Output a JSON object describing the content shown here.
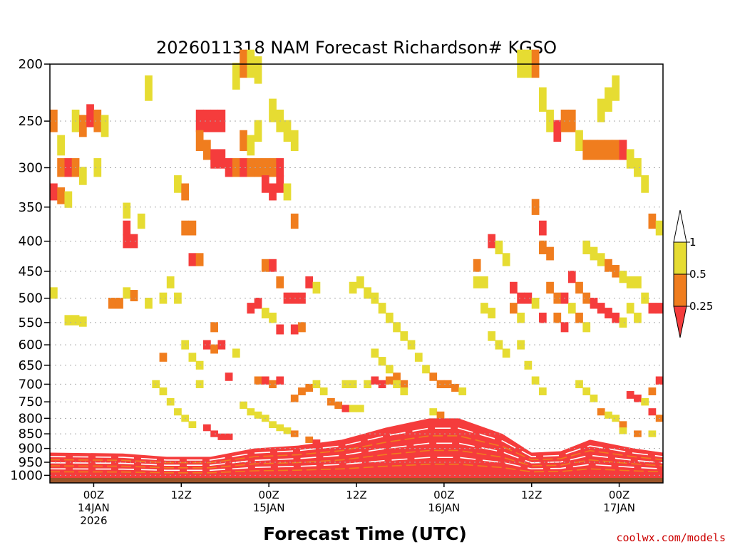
{
  "chart_data": {
    "type": "heatmap",
    "title": "2026011318 NAM Forecast Richardson# KGSO",
    "xlabel": "Forecast Time (UTC)",
    "ylabel": "",
    "credit": "coolwx.com/models",
    "colors": {
      "band_0_0.25": "#f53c3c",
      "band_0.25_0.5": "#f07d1e",
      "band_0.5_1": "#e6dc32",
      "ground": "#9b5428",
      "grid": "#aaaaaa",
      "frame": "#000000"
    },
    "y_axis": {
      "unit": "mb",
      "range": [
        1030,
        200
      ],
      "scale": "log",
      "ticks": [
        200,
        250,
        300,
        350,
        400,
        450,
        500,
        550,
        600,
        650,
        700,
        750,
        800,
        850,
        900,
        950,
        1000
      ],
      "tick_labels": [
        "200",
        "250",
        "300",
        "350",
        "400",
        "450",
        "500",
        "550",
        "600",
        "650",
        "700",
        "750",
        "800",
        "850",
        "900",
        "950",
        "1000"
      ]
    },
    "x_axis": {
      "unit": "hours after 2026011318",
      "range": [
        0,
        84
      ],
      "ticks": [
        {
          "hour": 6,
          "line1": "00Z",
          "line2": "14JAN",
          "line3": "2026"
        },
        {
          "hour": 18,
          "line1": "12Z",
          "line2": "",
          "line3": ""
        },
        {
          "hour": 30,
          "line1": "00Z",
          "line2": "15JAN",
          "line3": ""
        },
        {
          "hour": 42,
          "line1": "12Z",
          "line2": "",
          "line3": ""
        },
        {
          "hour": 54,
          "line1": "00Z",
          "line2": "16JAN",
          "line3": ""
        },
        {
          "hour": 66,
          "line1": "12Z",
          "line2": "",
          "line3": ""
        },
        {
          "hour": 78,
          "line1": "00Z",
          "line2": "17JAN",
          "line3": ""
        }
      ]
    },
    "legend": {
      "placement": "right",
      "levels": [
        "1",
        "0.5",
        "0.25"
      ],
      "bands": [
        {
          "range": "0.5 - 1",
          "color": "#e6dc32"
        },
        {
          "range": "0.25 - 0.5",
          "color": "#f07d1e"
        },
        {
          "range": "0 - 0.25",
          "color": "#f53c3c"
        }
      ]
    },
    "ground_level_mb": 1010,
    "surface_layer": {
      "top_mb_by_hour": [
        [
          0,
          915
        ],
        [
          10,
          918
        ],
        [
          16,
          930
        ],
        [
          22,
          930
        ],
        [
          28,
          900
        ],
        [
          34,
          890
        ],
        [
          40,
          870
        ],
        [
          46,
          830
        ],
        [
          52,
          800
        ],
        [
          56,
          800
        ],
        [
          62,
          850
        ],
        [
          66,
          915
        ],
        [
          70,
          910
        ],
        [
          74,
          870
        ],
        [
          80,
          900
        ],
        [
          84,
          915
        ]
      ]
    },
    "cells": [
      [
        0,
        250,
        1
      ],
      [
        1,
        275,
        2
      ],
      [
        1,
        300,
        1
      ],
      [
        2,
        300,
        0
      ],
      [
        3,
        300,
        1
      ],
      [
        4,
        310,
        2
      ],
      [
        0,
        330,
        0
      ],
      [
        1,
        335,
        1
      ],
      [
        2,
        340,
        2
      ],
      [
        3,
        250,
        2
      ],
      [
        4,
        255,
        1
      ],
      [
        5,
        245,
        0
      ],
      [
        6,
        250,
        1
      ],
      [
        7,
        255,
        2
      ],
      [
        6,
        300,
        2
      ],
      [
        10,
        380,
        0
      ],
      [
        10,
        400,
        0
      ],
      [
        11,
        400,
        0
      ],
      [
        10,
        355,
        2
      ],
      [
        12,
        370,
        2
      ],
      [
        13,
        220,
        2
      ],
      [
        8,
        510,
        1
      ],
      [
        9,
        510,
        1
      ],
      [
        10,
        490,
        2
      ],
      [
        11,
        495,
        1
      ],
      [
        13,
        510,
        2
      ],
      [
        2,
        545,
        2
      ],
      [
        3,
        545,
        2
      ],
      [
        4,
        548,
        2
      ],
      [
        0,
        490,
        2
      ],
      [
        17,
        320,
        2
      ],
      [
        18,
        330,
        1
      ],
      [
        18,
        380,
        1
      ],
      [
        19,
        380,
        1
      ],
      [
        19,
        430,
        0
      ],
      [
        20,
        430,
        1
      ],
      [
        20,
        250,
        0
      ],
      [
        21,
        250,
        0
      ],
      [
        22,
        250,
        0
      ],
      [
        23,
        250,
        0
      ],
      [
        20,
        270,
        1
      ],
      [
        21,
        280,
        1
      ],
      [
        22,
        290,
        0
      ],
      [
        23,
        290,
        0
      ],
      [
        24,
        300,
        0
      ],
      [
        25,
        300,
        1
      ],
      [
        26,
        300,
        0
      ],
      [
        27,
        300,
        1
      ],
      [
        28,
        300,
        1
      ],
      [
        29,
        300,
        1
      ],
      [
        30,
        300,
        1
      ],
      [
        31,
        300,
        0
      ],
      [
        26,
        270,
        1
      ],
      [
        27,
        275,
        2
      ],
      [
        28,
        260,
        2
      ],
      [
        29,
        320,
        0
      ],
      [
        30,
        330,
        0
      ],
      [
        31,
        320,
        0
      ],
      [
        32,
        330,
        2
      ],
      [
        33,
        370,
        1
      ],
      [
        32,
        260,
        2
      ],
      [
        33,
        270,
        2
      ],
      [
        30,
        240,
        2
      ],
      [
        31,
        250,
        2
      ],
      [
        25,
        210,
        2
      ],
      [
        26,
        200,
        1
      ],
      [
        27,
        200,
        2
      ],
      [
        28,
        205,
        2
      ],
      [
        29,
        440,
        1
      ],
      [
        30,
        440,
        0
      ],
      [
        31,
        470,
        1
      ],
      [
        32,
        500,
        0
      ],
      [
        33,
        500,
        0
      ],
      [
        34,
        500,
        0
      ],
      [
        35,
        470,
        0
      ],
      [
        36,
        480,
        2
      ],
      [
        27,
        520,
        0
      ],
      [
        28,
        510,
        0
      ],
      [
        29,
        530,
        2
      ],
      [
        30,
        540,
        2
      ],
      [
        31,
        565,
        0
      ],
      [
        33,
        565,
        0
      ],
      [
        34,
        560,
        1
      ],
      [
        28,
        690,
        1
      ],
      [
        29,
        690,
        0
      ],
      [
        30,
        700,
        1
      ],
      [
        31,
        690,
        0
      ],
      [
        33,
        740,
        1
      ],
      [
        34,
        720,
        1
      ],
      [
        35,
        710,
        1
      ],
      [
        36,
        700,
        2
      ],
      [
        21,
        600,
        0
      ],
      [
        22,
        560,
        1
      ],
      [
        22,
        610,
        1
      ],
      [
        23,
        600,
        0
      ],
      [
        24,
        680,
        0
      ],
      [
        25,
        620,
        2
      ],
      [
        18,
        600,
        2
      ],
      [
        19,
        630,
        2
      ],
      [
        20,
        650,
        2
      ],
      [
        20,
        700,
        2
      ],
      [
        21,
        830,
        0
      ],
      [
        22,
        850,
        0
      ],
      [
        23,
        860,
        0
      ],
      [
        24,
        860,
        0
      ],
      [
        37,
        720,
        2
      ],
      [
        38,
        750,
        1
      ],
      [
        39,
        760,
        1
      ],
      [
        40,
        770,
        0
      ],
      [
        41,
        770,
        2
      ],
      [
        42,
        770,
        2
      ],
      [
        40,
        700,
        2
      ],
      [
        41,
        700,
        2
      ],
      [
        43,
        700,
        2
      ],
      [
        44,
        690,
        0
      ],
      [
        45,
        700,
        0
      ],
      [
        46,
        690,
        1
      ],
      [
        47,
        680,
        1
      ],
      [
        48,
        700,
        1
      ],
      [
        41,
        480,
        2
      ],
      [
        42,
        470,
        2
      ],
      [
        43,
        490,
        2
      ],
      [
        44,
        500,
        2
      ],
      [
        45,
        520,
        2
      ],
      [
        46,
        540,
        2
      ],
      [
        47,
        560,
        2
      ],
      [
        48,
        580,
        2
      ],
      [
        49,
        600,
        2
      ],
      [
        50,
        630,
        2
      ],
      [
        51,
        660,
        2
      ],
      [
        52,
        680,
        1
      ],
      [
        53,
        700,
        1
      ],
      [
        54,
        700,
        1
      ],
      [
        55,
        710,
        1
      ],
      [
        56,
        720,
        2
      ],
      [
        58,
        440,
        1
      ],
      [
        58,
        470,
        2
      ],
      [
        59,
        470,
        2
      ],
      [
        59,
        520,
        2
      ],
      [
        60,
        530,
        2
      ],
      [
        60,
        580,
        2
      ],
      [
        61,
        600,
        2
      ],
      [
        62,
        620,
        2
      ],
      [
        63,
        480,
        0
      ],
      [
        63,
        520,
        1
      ],
      [
        64,
        540,
        2
      ],
      [
        64,
        600,
        2
      ],
      [
        65,
        650,
        2
      ],
      [
        66,
        690,
        2
      ],
      [
        67,
        720,
        2
      ],
      [
        60,
        400,
        0
      ],
      [
        61,
        410,
        2
      ],
      [
        62,
        430,
        2
      ],
      [
        64,
        500,
        0
      ],
      [
        65,
        500,
        0
      ],
      [
        66,
        510,
        2
      ],
      [
        67,
        540,
        0
      ],
      [
        66,
        350,
        1
      ],
      [
        67,
        380,
        0
      ],
      [
        67,
        410,
        1
      ],
      [
        68,
        420,
        1
      ],
      [
        68,
        480,
        1
      ],
      [
        69,
        500,
        1
      ],
      [
        69,
        540,
        1
      ],
      [
        70,
        560,
        0
      ],
      [
        64,
        200,
        2
      ],
      [
        65,
        200,
        2
      ],
      [
        66,
        200,
        1
      ],
      [
        67,
        230,
        2
      ],
      [
        68,
        250,
        2
      ],
      [
        69,
        260,
        0
      ],
      [
        70,
        250,
        1
      ],
      [
        71,
        250,
        1
      ],
      [
        72,
        270,
        2
      ],
      [
        73,
        280,
        1
      ],
      [
        74,
        280,
        1
      ],
      [
        75,
        280,
        1
      ],
      [
        76,
        280,
        1
      ],
      [
        77,
        280,
        1
      ],
      [
        78,
        280,
        0
      ],
      [
        79,
        290,
        2
      ],
      [
        75,
        240,
        2
      ],
      [
        76,
        230,
        2
      ],
      [
        77,
        220,
        2
      ],
      [
        80,
        300,
        2
      ],
      [
        81,
        320,
        2
      ],
      [
        82,
        370,
        1
      ],
      [
        83,
        380,
        2
      ],
      [
        73,
        410,
        2
      ],
      [
        74,
        420,
        2
      ],
      [
        75,
        430,
        2
      ],
      [
        76,
        440,
        1
      ],
      [
        77,
        450,
        1
      ],
      [
        78,
        460,
        2
      ],
      [
        79,
        470,
        2
      ],
      [
        80,
        470,
        2
      ],
      [
        71,
        460,
        0
      ],
      [
        72,
        480,
        1
      ],
      [
        73,
        500,
        1
      ],
      [
        74,
        510,
        0
      ],
      [
        75,
        520,
        0
      ],
      [
        76,
        530,
        0
      ],
      [
        77,
        540,
        0
      ],
      [
        78,
        550,
        2
      ],
      [
        79,
        520,
        2
      ],
      [
        80,
        540,
        2
      ],
      [
        81,
        500,
        2
      ],
      [
        82,
        520,
        0
      ],
      [
        83,
        520,
        0
      ],
      [
        70,
        500,
        0
      ],
      [
        71,
        520,
        2
      ],
      [
        72,
        540,
        1
      ],
      [
        73,
        560,
        2
      ],
      [
        72,
        700,
        2
      ],
      [
        73,
        720,
        2
      ],
      [
        74,
        740,
        2
      ],
      [
        75,
        780,
        1
      ],
      [
        76,
        790,
        2
      ],
      [
        77,
        800,
        2
      ],
      [
        78,
        820,
        1
      ],
      [
        79,
        730,
        0
      ],
      [
        80,
        740,
        0
      ],
      [
        81,
        750,
        2
      ],
      [
        82,
        720,
        1
      ],
      [
        83,
        690,
        0
      ],
      [
        82,
        780,
        0
      ],
      [
        83,
        800,
        1
      ],
      [
        78,
        840,
        2
      ],
      [
        80,
        850,
        1
      ],
      [
        82,
        850,
        2
      ],
      [
        14,
        700,
        2
      ],
      [
        15,
        720,
        2
      ],
      [
        16,
        750,
        2
      ],
      [
        17,
        780,
        2
      ],
      [
        18,
        800,
        2
      ],
      [
        19,
        820,
        2
      ],
      [
        15,
        500,
        2
      ],
      [
        16,
        470,
        2
      ],
      [
        17,
        500,
        2
      ],
      [
        15,
        630,
        1
      ],
      [
        26,
        760,
        2
      ],
      [
        27,
        780,
        2
      ],
      [
        28,
        790,
        2
      ],
      [
        29,
        800,
        2
      ],
      [
        30,
        820,
        2
      ],
      [
        31,
        830,
        2
      ],
      [
        32,
        840,
        2
      ],
      [
        33,
        850,
        1
      ],
      [
        35,
        870,
        1
      ],
      [
        36,
        880,
        0
      ],
      [
        44,
        620,
        2
      ],
      [
        45,
        640,
        2
      ],
      [
        46,
        660,
        2
      ],
      [
        47,
        700,
        2
      ],
      [
        48,
        720,
        2
      ],
      [
        52,
        780,
        2
      ],
      [
        53,
        790,
        1
      ]
    ]
  }
}
